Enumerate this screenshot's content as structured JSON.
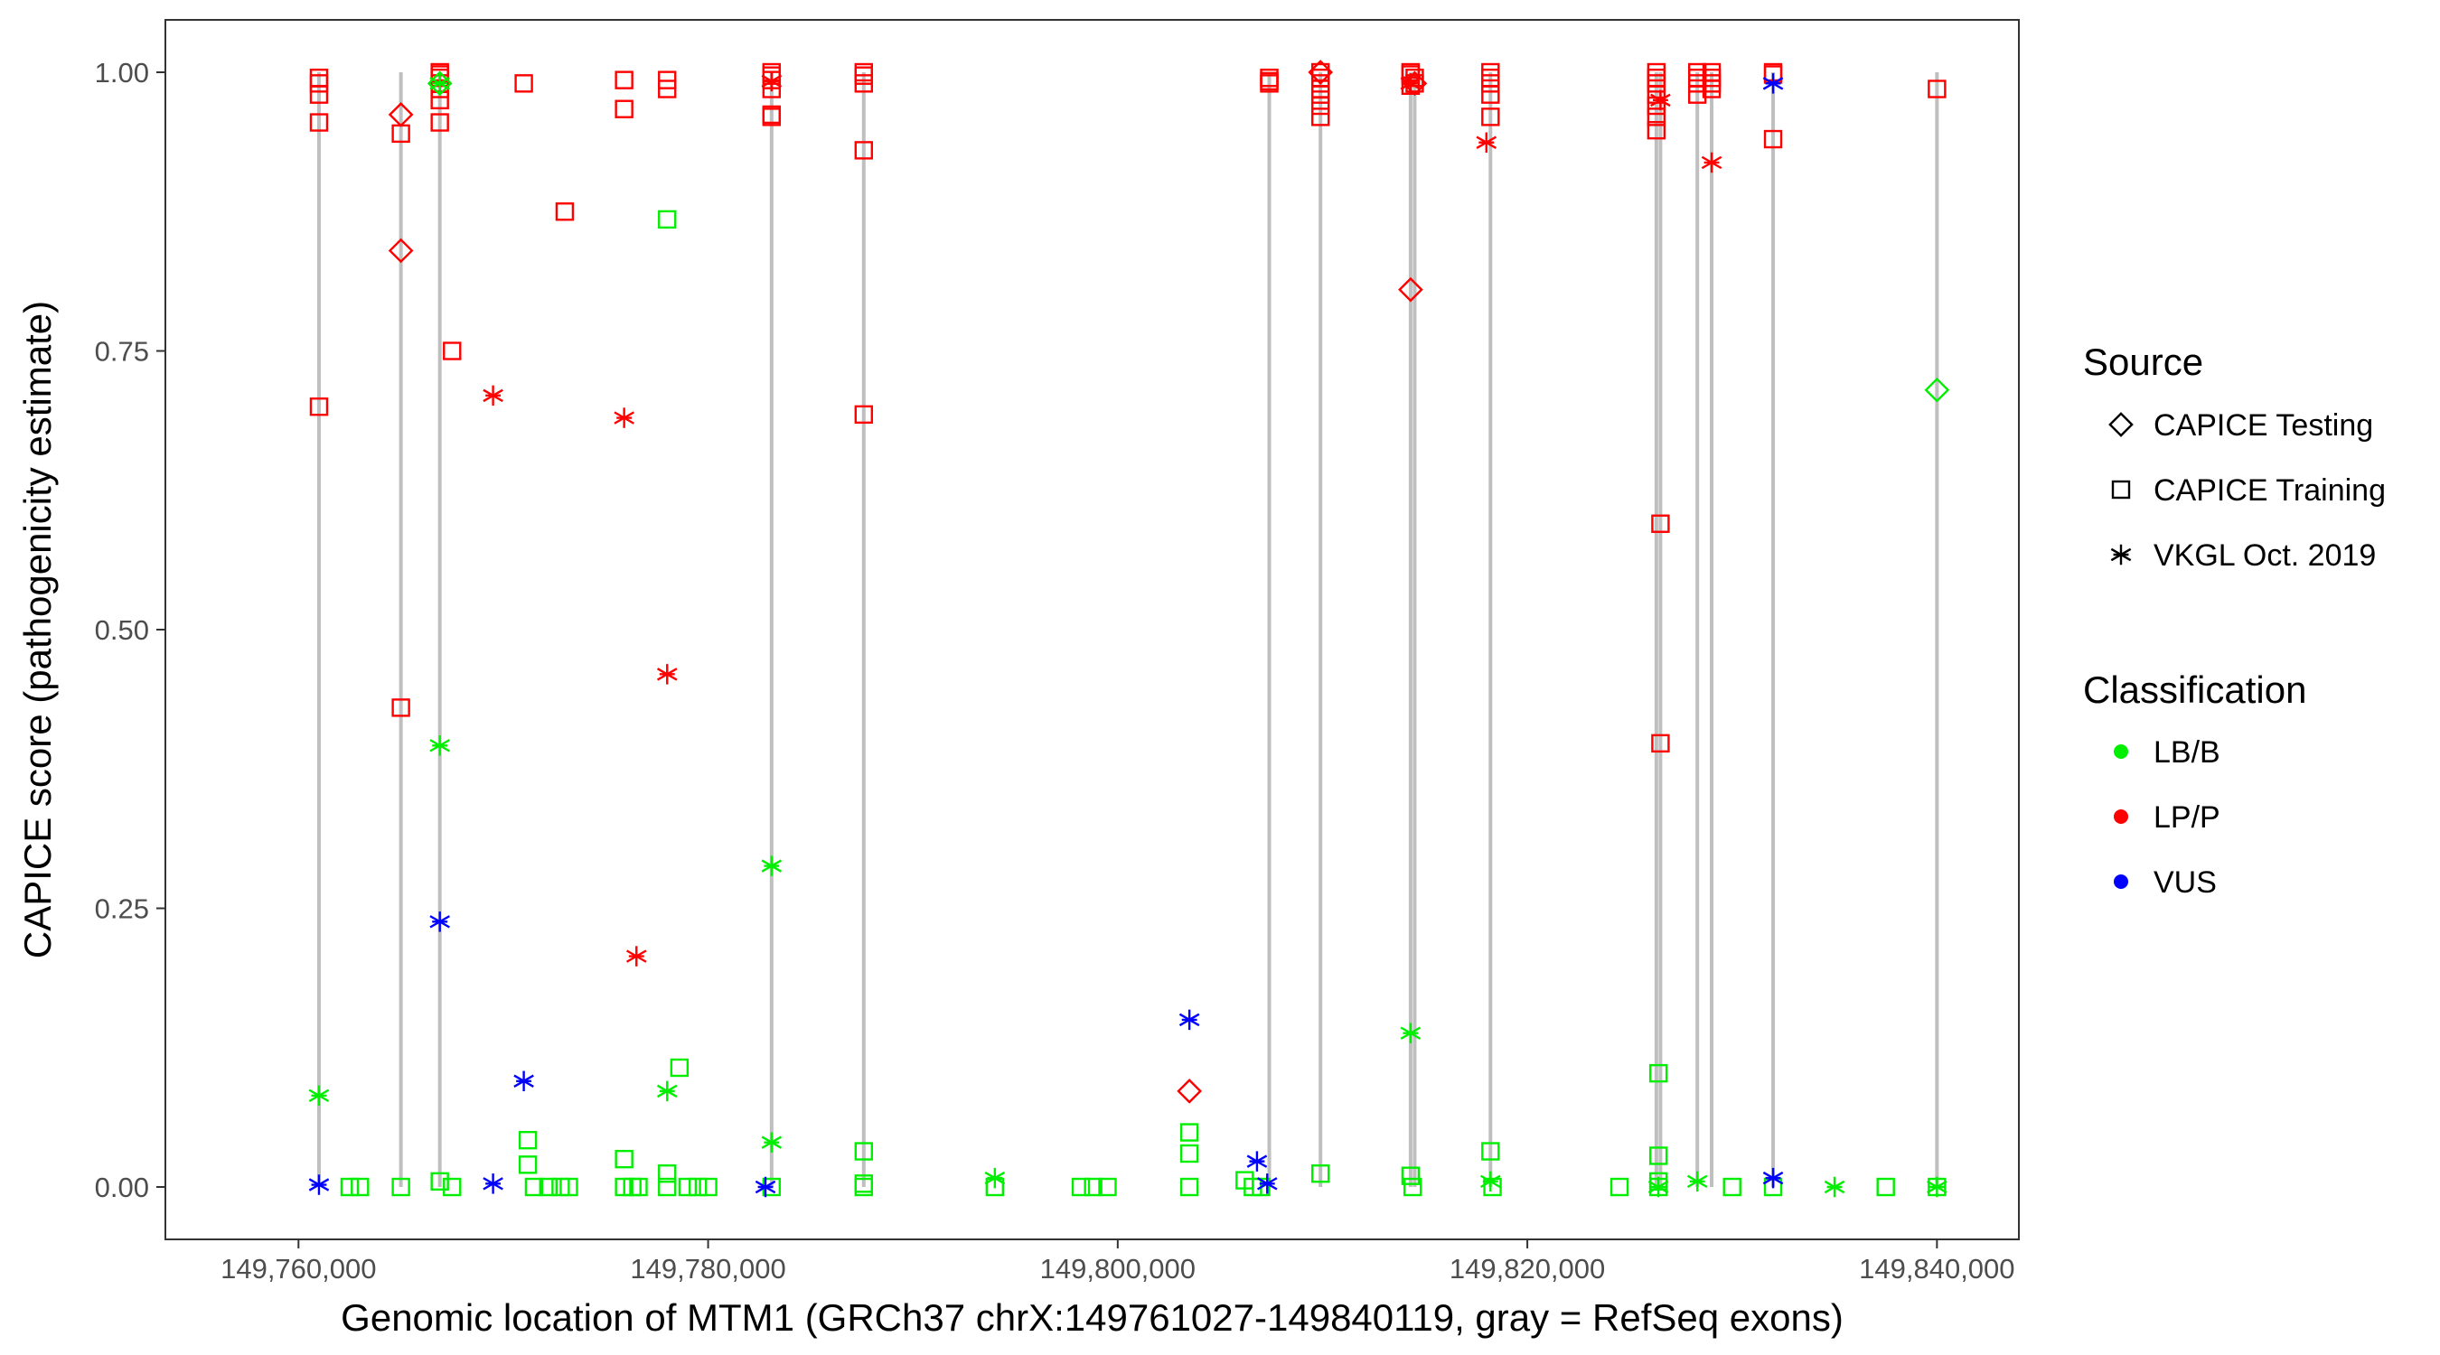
{
  "chart_data": {
    "type": "scatter",
    "title": "",
    "xlabel": "Genomic location of MTM1 (GRCh37 chrX:149761027-149840119, gray = RefSeq exons)",
    "ylabel": "CAPICE score (pathogenicity estimate)",
    "xlim": [
      149753500,
      149844000
    ],
    "ylim": [
      -0.047,
      1.047
    ],
    "xticks": [
      149760000,
      149780000,
      149800000,
      149820000,
      149840000
    ],
    "xtick_labels": [
      "149,760,000",
      "149,780,000",
      "149,800,000",
      "149,820,000",
      "149,840,000"
    ],
    "yticks": [
      0.0,
      0.25,
      0.5,
      0.75,
      1.0
    ],
    "ytick_labels": [
      "0.00",
      "0.25",
      "0.50",
      "0.75",
      "1.00"
    ],
    "grid": false,
    "legend_position": "right",
    "exons": [
      149761000,
      149765000,
      149766900,
      149783100,
      149787600,
      149807400,
      149809900,
      149814300,
      149814500,
      149818200,
      149826300,
      149826500,
      149828300,
      149829000,
      149832000,
      149840000
    ],
    "legend": {
      "source_title": "Source",
      "sources": [
        {
          "key": "testing",
          "label": "CAPICE Testing",
          "shape": "diamond"
        },
        {
          "key": "training",
          "label": "CAPICE Training",
          "shape": "square"
        },
        {
          "key": "vkgl",
          "label": "VKGL Oct. 2019",
          "shape": "asterisk"
        }
      ],
      "class_title": "Classification",
      "classes": [
        {
          "key": "lbb",
          "label": "LB/B",
          "color": "#00ee00"
        },
        {
          "key": "lpp",
          "label": "LP/P",
          "color": "#ff0000"
        },
        {
          "key": "vus",
          "label": "VUS",
          "color": "#0000ff"
        }
      ]
    },
    "series": [
      {
        "source": "training",
        "class": "lpp",
        "points": [
          [
            149761000,
            0.995
          ],
          [
            149761000,
            0.99
          ],
          [
            149761000,
            0.98
          ],
          [
            149761000,
            0.955
          ],
          [
            149761000,
            0.7
          ],
          [
            149765000,
            0.945
          ],
          [
            149765000,
            0.43
          ],
          [
            149766900,
            1.0
          ],
          [
            149766900,
            0.998
          ],
          [
            149766900,
            0.995
          ],
          [
            149766900,
            0.99
          ],
          [
            149766900,
            0.985
          ],
          [
            149766900,
            0.975
          ],
          [
            149766900,
            0.955
          ],
          [
            149767500,
            0.75
          ],
          [
            149771000,
            0.99
          ],
          [
            149773000,
            0.875
          ],
          [
            149775900,
            0.993
          ],
          [
            149775900,
            0.967
          ],
          [
            149778000,
            0.993
          ],
          [
            149778000,
            0.985
          ],
          [
            149783100,
            1.0
          ],
          [
            149783100,
            0.997
          ],
          [
            149783100,
            0.993
          ],
          [
            149783100,
            0.985
          ],
          [
            149783100,
            0.962
          ],
          [
            149783100,
            0.96
          ],
          [
            149787600,
            1.0
          ],
          [
            149787600,
            0.997
          ],
          [
            149787600,
            0.99
          ],
          [
            149787600,
            0.93
          ],
          [
            149787600,
            0.693
          ],
          [
            149807400,
            0.995
          ],
          [
            149807400,
            0.992
          ],
          [
            149807400,
            0.99
          ],
          [
            149809900,
            1.0
          ],
          [
            149809900,
            0.995
          ],
          [
            149809900,
            0.99
          ],
          [
            149809900,
            0.985
          ],
          [
            149809900,
            0.98
          ],
          [
            149809900,
            0.97
          ],
          [
            149809900,
            0.96
          ],
          [
            149814300,
            1.0
          ],
          [
            149814300,
            0.998
          ],
          [
            149814500,
            0.995
          ],
          [
            149814500,
            0.99
          ],
          [
            149814300,
            0.988
          ],
          [
            149818200,
            1.0
          ],
          [
            149818200,
            0.995
          ],
          [
            149818200,
            0.99
          ],
          [
            149818200,
            0.98
          ],
          [
            149818200,
            0.96
          ],
          [
            149826300,
            1.0
          ],
          [
            149826300,
            0.995
          ],
          [
            149826300,
            0.99
          ],
          [
            149826300,
            0.98
          ],
          [
            149826300,
            0.97
          ],
          [
            149826300,
            0.96
          ],
          [
            149826300,
            0.948
          ],
          [
            149826500,
            0.595
          ],
          [
            149826500,
            0.398
          ],
          [
            149828300,
            1.0
          ],
          [
            149828300,
            0.995
          ],
          [
            149828300,
            0.99
          ],
          [
            149828300,
            0.98
          ],
          [
            149829000,
            1.0
          ],
          [
            149829000,
            0.995
          ],
          [
            149829000,
            0.99
          ],
          [
            149829000,
            0.985
          ],
          [
            149832000,
            1.0
          ],
          [
            149832000,
            0.998
          ],
          [
            149832000,
            0.94
          ],
          [
            149840000,
            0.985
          ]
        ]
      },
      {
        "source": "training",
        "class": "lbb",
        "points": [
          [
            149766900,
            0.005
          ],
          [
            149767500,
            0.0
          ],
          [
            149765000,
            0.0
          ],
          [
            149762500,
            0.0
          ],
          [
            149763000,
            0.0
          ],
          [
            149771200,
            0.042
          ],
          [
            149771200,
            0.02
          ],
          [
            149771500,
            0.0
          ],
          [
            149772200,
            0.0
          ],
          [
            149772800,
            0.0
          ],
          [
            149773200,
            0.0
          ],
          [
            149775900,
            0.025
          ],
          [
            149775900,
            0.0
          ],
          [
            149776300,
            0.0
          ],
          [
            149776600,
            0.0
          ],
          [
            149778000,
            0.868
          ],
          [
            149778000,
            0.012
          ],
          [
            149778000,
            0.0
          ],
          [
            149778600,
            0.107
          ],
          [
            149779000,
            0.0
          ],
          [
            149779500,
            0.0
          ],
          [
            149780000,
            0.0
          ],
          [
            149783100,
            0.0
          ],
          [
            149787600,
            0.032
          ],
          [
            149787600,
            0.003
          ],
          [
            149787600,
            0.0
          ],
          [
            149794000,
            0.0
          ],
          [
            149798200,
            0.0
          ],
          [
            149798800,
            0.0
          ],
          [
            149799500,
            0.0
          ],
          [
            149803500,
            0.049
          ],
          [
            149803500,
            0.03
          ],
          [
            149803500,
            0.0
          ],
          [
            149806200,
            0.006
          ],
          [
            149806600,
            0.0
          ],
          [
            149807000,
            0.0
          ],
          [
            149809900,
            0.012
          ],
          [
            149814300,
            0.01
          ],
          [
            149814400,
            0.0
          ],
          [
            149818200,
            0.032
          ],
          [
            149818300,
            0.0
          ],
          [
            149824500,
            0.0
          ],
          [
            149826400,
            0.102
          ],
          [
            149826400,
            0.028
          ],
          [
            149826400,
            0.005
          ],
          [
            149826400,
            0.0
          ],
          [
            149830000,
            0.0
          ],
          [
            149832000,
            0.0
          ],
          [
            149837500,
            0.0
          ],
          [
            149840000,
            0.0
          ]
        ]
      },
      {
        "source": "testing",
        "class": "lpp",
        "points": [
          [
            149765000,
            0.962
          ],
          [
            149765000,
            0.84
          ],
          [
            149803500,
            0.086
          ],
          [
            149809900,
            1.0
          ],
          [
            149814300,
            0.805
          ],
          [
            149814500,
            0.99
          ]
        ]
      },
      {
        "source": "testing",
        "class": "lbb",
        "points": [
          [
            149766900,
            0.99
          ],
          [
            149840000,
            0.715
          ]
        ]
      },
      {
        "source": "vkgl",
        "class": "lpp",
        "points": [
          [
            149769500,
            0.71
          ],
          [
            149775900,
            0.69
          ],
          [
            149778000,
            0.46
          ],
          [
            149776500,
            0.207
          ],
          [
            149783100,
            0.992
          ],
          [
            149814300,
            0.99
          ],
          [
            149818000,
            0.937
          ],
          [
            149826500,
            0.975
          ],
          [
            149829000,
            0.919
          ]
        ]
      },
      {
        "source": "vkgl",
        "class": "lbb",
        "points": [
          [
            149761000,
            0.082
          ],
          [
            149766900,
            0.396
          ],
          [
            149766900,
            0.99
          ],
          [
            149778000,
            0.086
          ],
          [
            149783100,
            0.288
          ],
          [
            149783100,
            0.04
          ],
          [
            149794000,
            0.008
          ],
          [
            149814300,
            0.138
          ],
          [
            149818200,
            0.005
          ],
          [
            149826400,
            0.0
          ],
          [
            149828300,
            0.005
          ],
          [
            149835000,
            0.0
          ],
          [
            149840000,
            0.0
          ]
        ]
      },
      {
        "source": "vkgl",
        "class": "vus",
        "points": [
          [
            149761000,
            0.002
          ],
          [
            149766900,
            0.238
          ],
          [
            149769500,
            0.003
          ],
          [
            149771000,
            0.095
          ],
          [
            149782800,
            0.0
          ],
          [
            149803500,
            0.15
          ],
          [
            149806800,
            0.023
          ],
          [
            149807300,
            0.003
          ],
          [
            149832000,
            0.99
          ],
          [
            149832000,
            0.008
          ]
        ]
      }
    ]
  }
}
